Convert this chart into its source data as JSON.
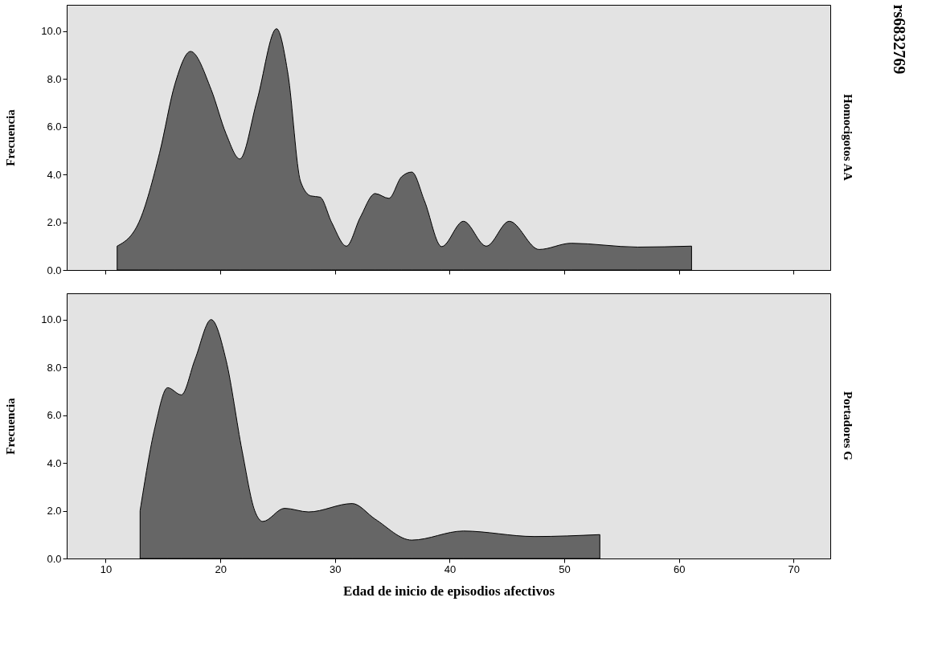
{
  "chart_data": [
    {
      "type": "area",
      "y2label": "Homocigotos AA",
      "ylabel": "Frecuencia",
      "annotations": [
        "rs6832769"
      ],
      "tick_labels": "y",
      "grid": false,
      "xlim": [
        6.6,
        73.2
      ],
      "xticks": [
        10,
        20,
        30,
        40,
        50,
        60,
        70
      ],
      "ylim": [
        0,
        11.1
      ],
      "yticks": [
        {
          "value": 0,
          "label": "0.0"
        },
        {
          "value": 2,
          "label": "2.0"
        },
        {
          "value": 4,
          "label": "4.0"
        },
        {
          "value": 6,
          "label": "6.0"
        },
        {
          "value": 8,
          "label": "8.0"
        },
        {
          "value": 10,
          "label": "10.0"
        }
      ],
      "series": [
        {
          "color": "#666666",
          "x": [
            11,
            12.9,
            14.7,
            16.05,
            17.4,
            19.2,
            20.5,
            21.7,
            23.2,
            24.9,
            25.9,
            27.0,
            27.9,
            28.7,
            29.7,
            31.0,
            32.2,
            33.5,
            34.7,
            35.8,
            36.7,
            37.8,
            39.3,
            41.2,
            43.2,
            45.2,
            47.8,
            50.6,
            56.4,
            61.1
          ],
          "values": [
            1.0,
            2.0,
            4.9,
            7.8,
            9.15,
            7.55,
            5.7,
            4.65,
            7.1,
            10.1,
            8.2,
            3.7,
            3.1,
            3.05,
            2.0,
            1.0,
            2.2,
            3.2,
            3.0,
            3.9,
            4.1,
            2.9,
            0.98,
            2.04,
            1.0,
            2.04,
            0.86,
            1.12,
            0.96,
            1.0
          ]
        }
      ]
    },
    {
      "type": "area",
      "y2label": "Portadores G",
      "xlabel": "Edad de inicio de episodios afectivos",
      "ylabel": "Frecuencia",
      "grid": false,
      "xlim": [
        6.6,
        73.2
      ],
      "xticks": [
        10,
        20,
        30,
        40,
        50,
        60,
        70
      ],
      "ylim": [
        0,
        11.1
      ],
      "yticks": [
        {
          "value": 0,
          "label": "0.0"
        },
        {
          "value": 2,
          "label": "2.0"
        },
        {
          "value": 4,
          "label": "4.0"
        },
        {
          "value": 6,
          "label": "6.0"
        },
        {
          "value": 8,
          "label": "8.0"
        },
        {
          "value": 10,
          "label": "10.0"
        }
      ],
      "series": [
        {
          "color": "#666666",
          "x": [
            13.0,
            14.3,
            15.4,
            16.6,
            17.8,
            19.2,
            20.5,
            21.9,
            23.0,
            23.7,
            25.6,
            27.7,
            31.5,
            33.5,
            36.7,
            41.2,
            47.4,
            53.1
          ],
          "values": [
            2.0,
            5.5,
            7.15,
            6.85,
            8.35,
            10.0,
            8.3,
            4.5,
            2.0,
            1.55,
            2.1,
            1.95,
            2.3,
            1.65,
            0.77,
            1.15,
            0.92,
            1.0
          ]
        }
      ]
    }
  ]
}
